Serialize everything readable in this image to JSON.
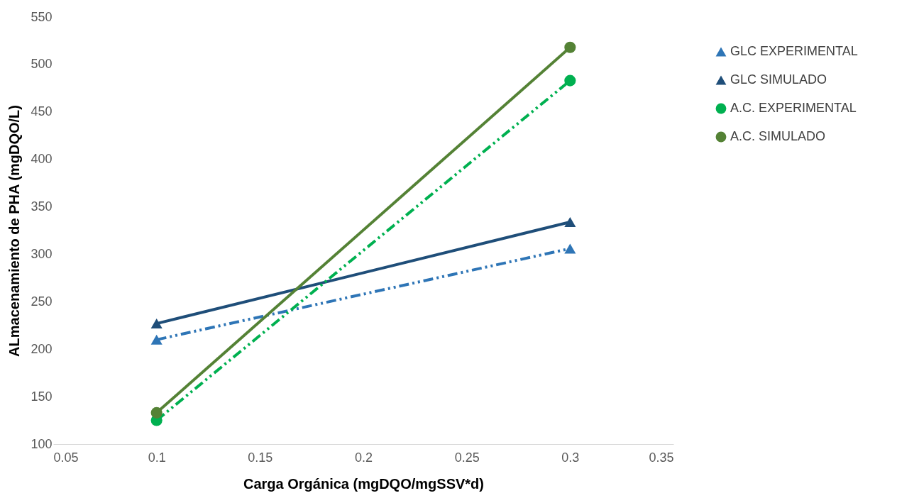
{
  "chart_data": {
    "type": "line",
    "xlabel": "Carga Orgánica (mgDQO/mgSSV*d)",
    "ylabel": "ALmacenamiento de PHA (mgDQO/L)",
    "x": [
      0.1,
      0.3
    ],
    "series": [
      {
        "name": "GLC EXPERIMENTAL",
        "color": "#2e75b6",
        "values": [
          210,
          306
        ],
        "marker": "triangle",
        "line_style": "dashed"
      },
      {
        "name": "GLC SIMULADO",
        "color": "#1f4e79",
        "values": [
          227,
          334
        ],
        "marker": "triangle",
        "line_style": "solid"
      },
      {
        "name": "A.C. EXPERIMENTAL",
        "color": "#00b050",
        "values": [
          125,
          483
        ],
        "marker": "circle",
        "line_style": "dashed"
      },
      {
        "name": "A.C. SIMULADO",
        "color": "#548235",
        "values": [
          133,
          518
        ],
        "marker": "circle",
        "line_style": "solid"
      }
    ],
    "xlim": [
      0.05,
      0.35
    ],
    "xticks": [
      0.05,
      0.1,
      0.15,
      0.2,
      0.25,
      0.3,
      0.35
    ],
    "ylim": [
      100,
      550
    ],
    "yticks": [
      100,
      150,
      200,
      250,
      300,
      350,
      400,
      450,
      500,
      550
    ],
    "grid": false,
    "legend": "right"
  }
}
